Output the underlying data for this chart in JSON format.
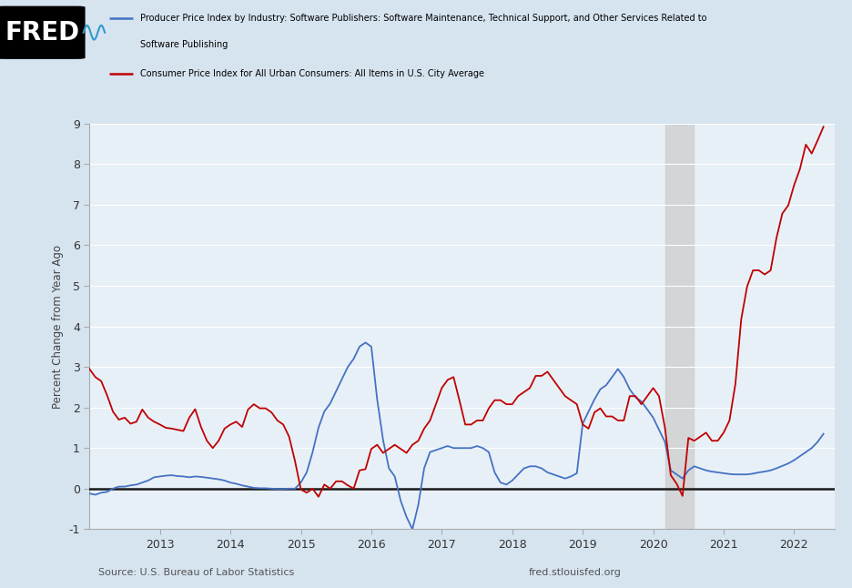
{
  "bg_color": "#d6e4f0",
  "plot_bg_color": "#e8f0f7",
  "grid_color": "#ffffff",
  "ylabel": "Percent Change from Year Ago",
  "source_left": "Source: U.S. Bureau of Labor Statistics",
  "source_right": "fred.stlouisfed.org",
  "shaded_region_start": 2020.17,
  "shaded_region_end": 2020.58,
  "ylim": [
    -1,
    9
  ],
  "yticks": [
    -1,
    0,
    1,
    2,
    3,
    4,
    5,
    6,
    7,
    8,
    9
  ],
  "blue_color": "#4472c4",
  "red_color": "#c00000",
  "zero_line_color": "#1a1a1a",
  "legend_blue_line1": "Producer Price Index by Industry: Software Publishers: Software Maintenance, Technical Support, and Other Services Related to",
  "legend_blue_line2": "Software Publishing",
  "legend_red_line": "Consumer Price Index for All Urban Consumers: All Items in U.S. City Average",
  "blue_data": {
    "dates": [
      2012.0,
      2012.083,
      2012.167,
      2012.25,
      2012.333,
      2012.417,
      2012.5,
      2012.583,
      2012.667,
      2012.75,
      2012.833,
      2012.917,
      2013.0,
      2013.083,
      2013.167,
      2013.25,
      2013.333,
      2013.417,
      2013.5,
      2013.583,
      2013.667,
      2013.75,
      2013.833,
      2013.917,
      2014.0,
      2014.083,
      2014.167,
      2014.25,
      2014.333,
      2014.417,
      2014.5,
      2014.583,
      2014.667,
      2014.75,
      2014.833,
      2014.917,
      2015.0,
      2015.083,
      2015.167,
      2015.25,
      2015.333,
      2015.417,
      2015.5,
      2015.583,
      2015.667,
      2015.75,
      2015.833,
      2015.917,
      2016.0,
      2016.083,
      2016.167,
      2016.25,
      2016.333,
      2016.417,
      2016.5,
      2016.583,
      2016.667,
      2016.75,
      2016.833,
      2016.917,
      2017.0,
      2017.083,
      2017.167,
      2017.25,
      2017.333,
      2017.417,
      2017.5,
      2017.583,
      2017.667,
      2017.75,
      2017.833,
      2017.917,
      2018.0,
      2018.083,
      2018.167,
      2018.25,
      2018.333,
      2018.417,
      2018.5,
      2018.583,
      2018.667,
      2018.75,
      2018.833,
      2018.917,
      2019.0,
      2019.083,
      2019.167,
      2019.25,
      2019.333,
      2019.417,
      2019.5,
      2019.583,
      2019.667,
      2019.75,
      2019.833,
      2019.917,
      2020.0,
      2020.083,
      2020.167,
      2020.25,
      2020.333,
      2020.417,
      2020.5,
      2020.583,
      2020.667,
      2020.75,
      2020.833,
      2020.917,
      2021.0,
      2021.083,
      2021.167,
      2021.25,
      2021.333,
      2021.417,
      2021.5,
      2021.583,
      2021.667,
      2021.75,
      2021.833,
      2021.917,
      2022.0,
      2022.083,
      2022.167,
      2022.25,
      2022.333,
      2022.417
    ],
    "values": [
      -0.12,
      -0.15,
      -0.1,
      -0.08,
      0.0,
      0.05,
      0.05,
      0.08,
      0.1,
      0.15,
      0.2,
      0.28,
      0.3,
      0.32,
      0.33,
      0.31,
      0.3,
      0.28,
      0.3,
      0.29,
      0.27,
      0.25,
      0.23,
      0.2,
      0.15,
      0.12,
      0.08,
      0.05,
      0.02,
      0.01,
      0.01,
      0.0,
      -0.01,
      -0.01,
      0.0,
      0.0,
      0.15,
      0.4,
      0.9,
      1.5,
      1.9,
      2.1,
      2.4,
      2.7,
      3.0,
      3.2,
      3.5,
      3.6,
      3.5,
      2.2,
      1.2,
      0.5,
      0.3,
      -0.3,
      -0.7,
      -1.0,
      -0.4,
      0.5,
      0.9,
      0.95,
      1.0,
      1.05,
      1.0,
      1.0,
      1.0,
      1.0,
      1.05,
      1.0,
      0.9,
      0.4,
      0.15,
      0.1,
      0.2,
      0.35,
      0.5,
      0.55,
      0.55,
      0.5,
      0.4,
      0.35,
      0.3,
      0.25,
      0.3,
      0.38,
      1.6,
      1.9,
      2.2,
      2.45,
      2.55,
      2.75,
      2.95,
      2.75,
      2.45,
      2.25,
      2.15,
      1.95,
      1.75,
      1.45,
      1.15,
      0.45,
      0.35,
      0.25,
      0.45,
      0.55,
      0.5,
      0.45,
      0.42,
      0.4,
      0.38,
      0.36,
      0.35,
      0.35,
      0.35,
      0.37,
      0.4,
      0.42,
      0.45,
      0.5,
      0.56,
      0.62,
      0.7,
      0.8,
      0.9,
      1.0,
      1.15,
      1.35
    ]
  },
  "red_data": {
    "dates": [
      2012.0,
      2012.083,
      2012.167,
      2012.25,
      2012.333,
      2012.417,
      2012.5,
      2012.583,
      2012.667,
      2012.75,
      2012.833,
      2012.917,
      2013.0,
      2013.083,
      2013.167,
      2013.25,
      2013.333,
      2013.417,
      2013.5,
      2013.583,
      2013.667,
      2013.75,
      2013.833,
      2013.917,
      2014.0,
      2014.083,
      2014.167,
      2014.25,
      2014.333,
      2014.417,
      2014.5,
      2014.583,
      2014.667,
      2014.75,
      2014.833,
      2014.917,
      2015.0,
      2015.083,
      2015.167,
      2015.25,
      2015.333,
      2015.417,
      2015.5,
      2015.583,
      2015.667,
      2015.75,
      2015.833,
      2015.917,
      2016.0,
      2016.083,
      2016.167,
      2016.25,
      2016.333,
      2016.417,
      2016.5,
      2016.583,
      2016.667,
      2016.75,
      2016.833,
      2016.917,
      2017.0,
      2017.083,
      2017.167,
      2017.25,
      2017.333,
      2017.417,
      2017.5,
      2017.583,
      2017.667,
      2017.75,
      2017.833,
      2017.917,
      2018.0,
      2018.083,
      2018.167,
      2018.25,
      2018.333,
      2018.417,
      2018.5,
      2018.583,
      2018.667,
      2018.75,
      2018.833,
      2018.917,
      2019.0,
      2019.083,
      2019.167,
      2019.25,
      2019.333,
      2019.417,
      2019.5,
      2019.583,
      2019.667,
      2019.75,
      2019.833,
      2019.917,
      2020.0,
      2020.083,
      2020.167,
      2020.25,
      2020.333,
      2020.417,
      2020.5,
      2020.583,
      2020.667,
      2020.75,
      2020.833,
      2020.917,
      2021.0,
      2021.083,
      2021.167,
      2021.25,
      2021.333,
      2021.417,
      2021.5,
      2021.583,
      2021.667,
      2021.75,
      2021.833,
      2021.917,
      2022.0,
      2022.083,
      2022.167,
      2022.25,
      2022.333,
      2022.417
    ],
    "values": [
      2.95,
      2.75,
      2.65,
      2.3,
      1.9,
      1.7,
      1.75,
      1.6,
      1.65,
      1.95,
      1.75,
      1.65,
      1.58,
      1.5,
      1.48,
      1.45,
      1.42,
      1.75,
      1.96,
      1.52,
      1.18,
      1.0,
      1.18,
      1.48,
      1.58,
      1.65,
      1.52,
      1.95,
      2.08,
      1.98,
      1.98,
      1.88,
      1.68,
      1.58,
      1.28,
      0.68,
      -0.02,
      -0.1,
      0.0,
      -0.2,
      0.1,
      0.0,
      0.18,
      0.18,
      0.08,
      0.0,
      0.45,
      0.48,
      0.98,
      1.08,
      0.88,
      0.98,
      1.08,
      0.98,
      0.88,
      1.08,
      1.18,
      1.48,
      1.68,
      2.08,
      2.48,
      2.68,
      2.75,
      2.18,
      1.58,
      1.58,
      1.68,
      1.68,
      1.98,
      2.18,
      2.18,
      2.08,
      2.08,
      2.28,
      2.38,
      2.48,
      2.78,
      2.78,
      2.88,
      2.68,
      2.48,
      2.28,
      2.18,
      2.08,
      1.58,
      1.48,
      1.88,
      1.98,
      1.78,
      1.78,
      1.68,
      1.68,
      2.28,
      2.28,
      2.08,
      2.28,
      2.48,
      2.28,
      1.5,
      0.33,
      0.12,
      -0.18,
      1.25,
      1.18,
      1.28,
      1.38,
      1.18,
      1.18,
      1.38,
      1.68,
      2.58,
      4.18,
      4.98,
      5.38,
      5.38,
      5.28,
      5.38,
      6.18,
      6.78,
      6.98,
      7.48,
      7.88,
      8.48,
      8.26,
      8.58,
      8.92
    ]
  },
  "xtick_positions": [
    2013,
    2014,
    2015,
    2016,
    2017,
    2018,
    2019,
    2020,
    2021,
    2022
  ],
  "xtick_labels": [
    "2013",
    "2014",
    "2015",
    "2016",
    "2017",
    "2018",
    "2019",
    "2020",
    "2021",
    "2022"
  ]
}
